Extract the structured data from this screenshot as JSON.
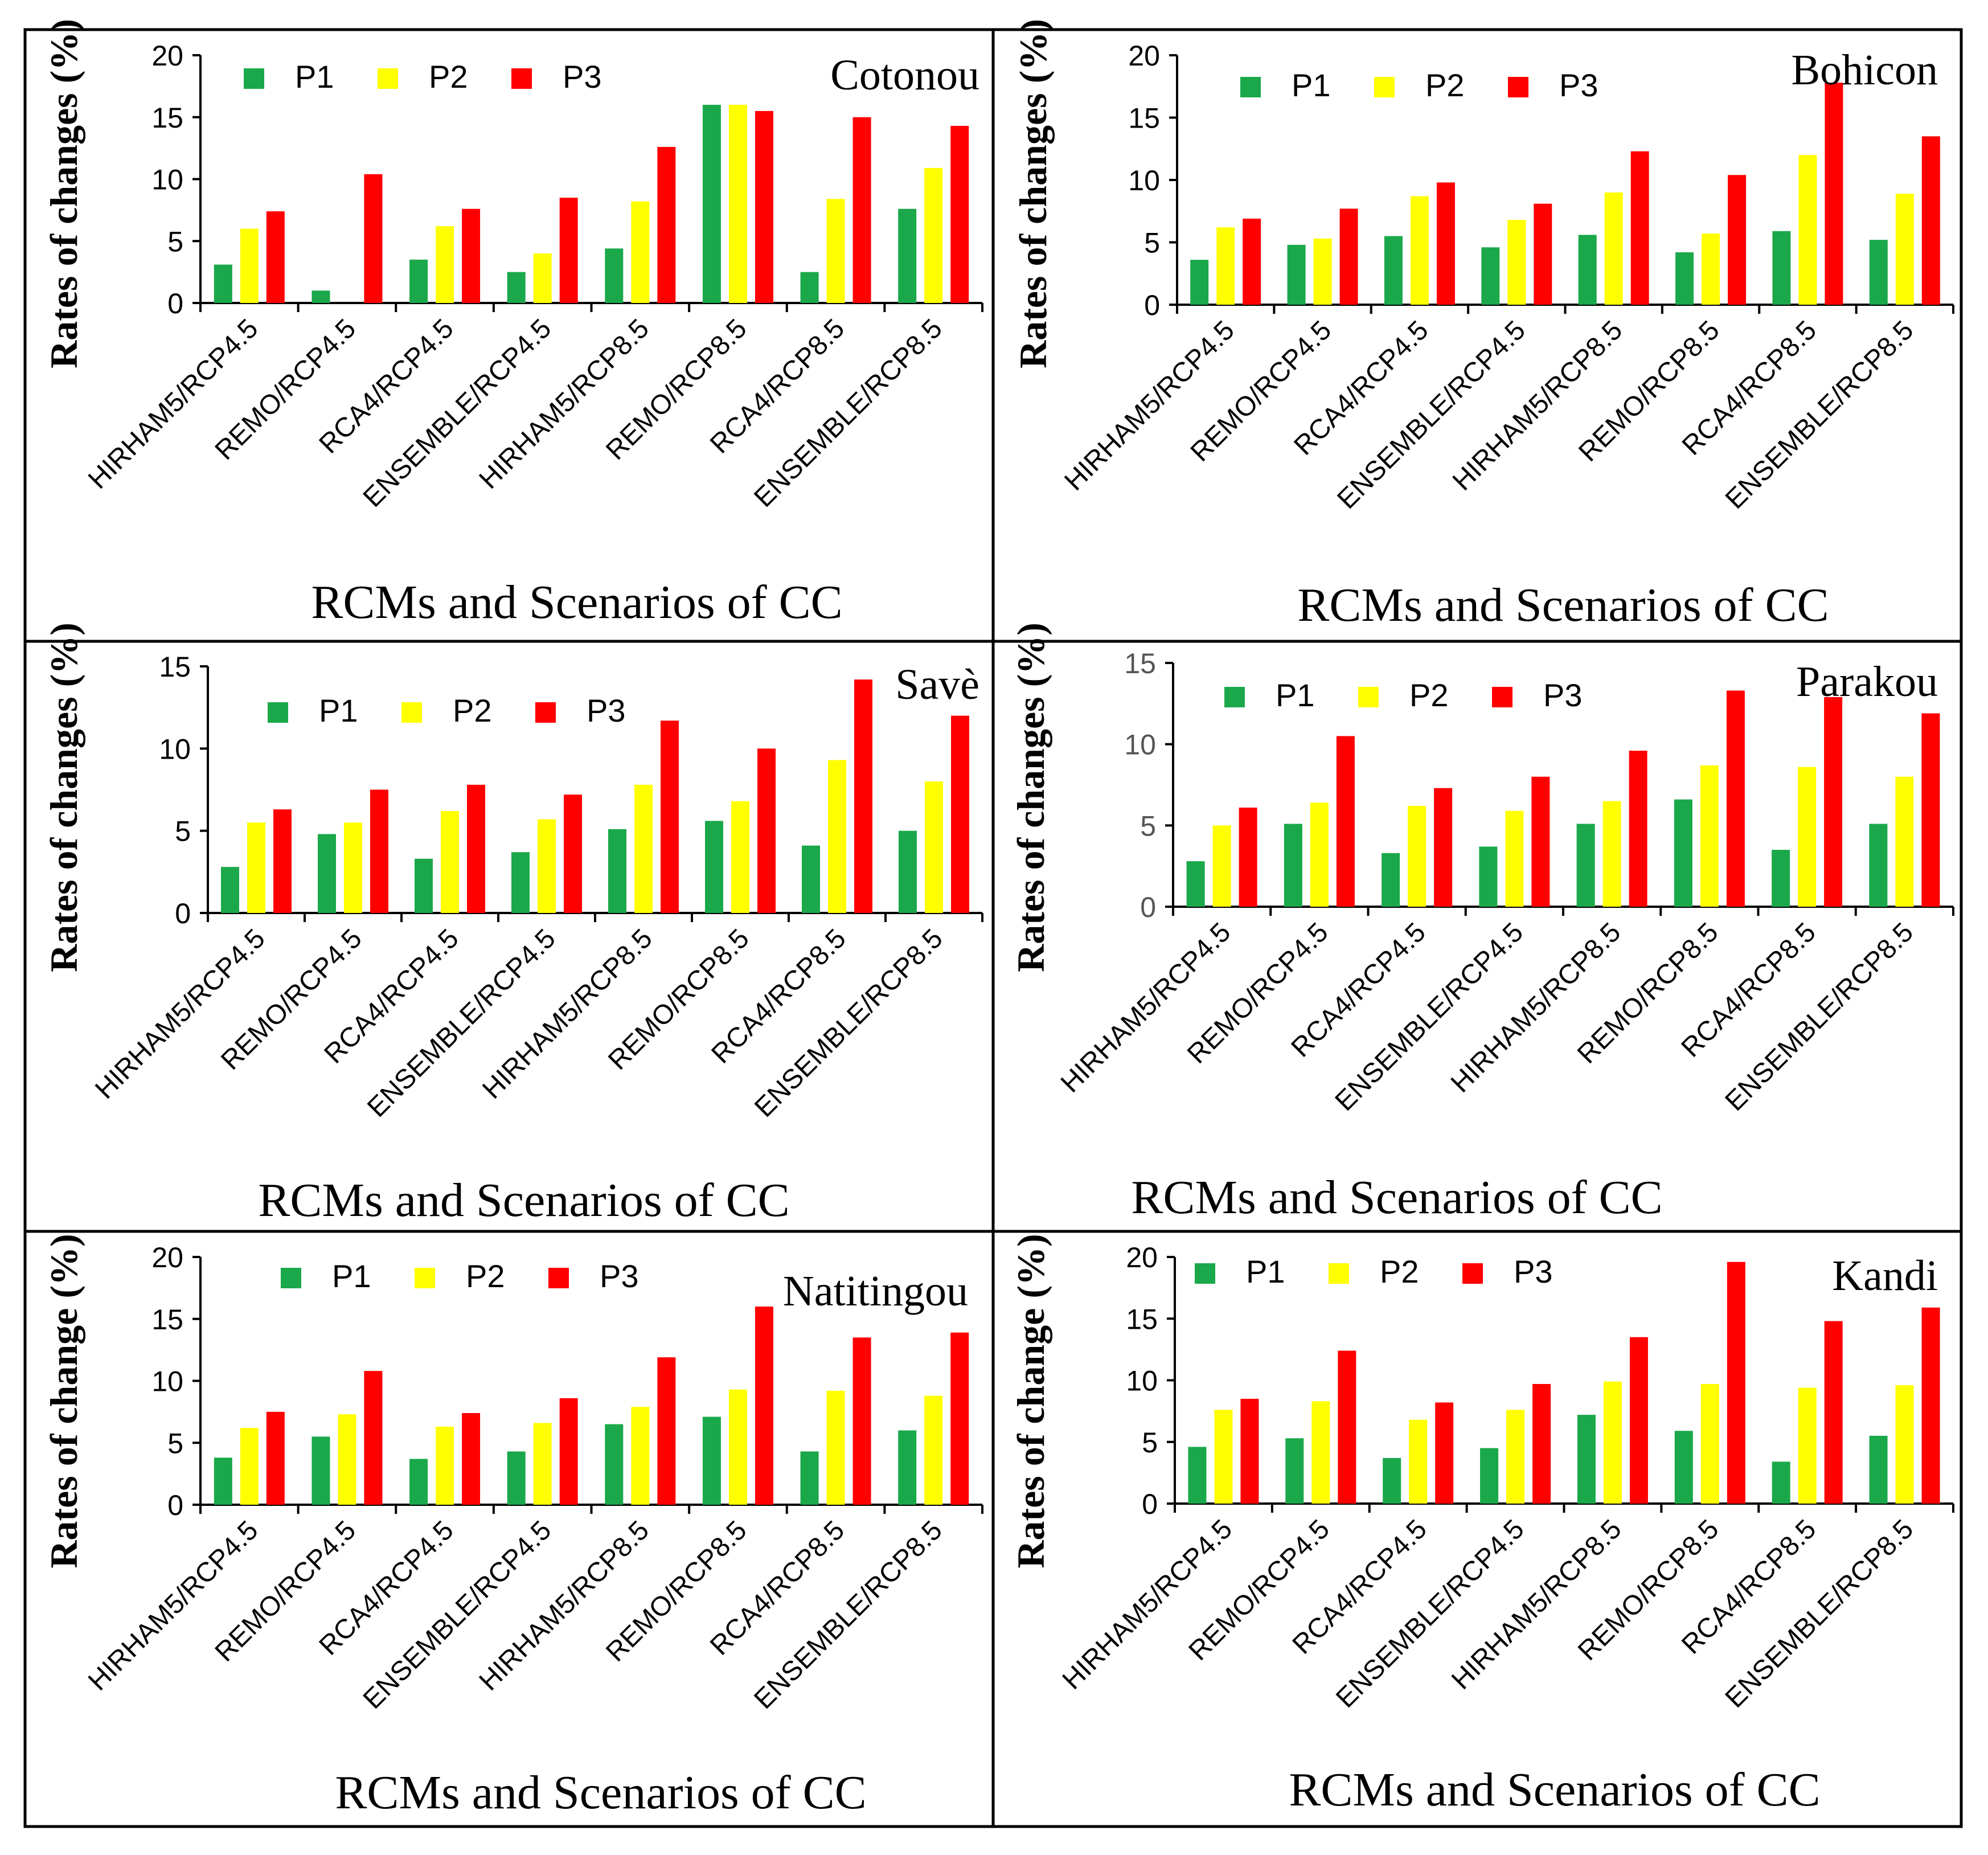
{
  "colors": {
    "P1": "#1aa84a",
    "P2": "#ffff00",
    "P3": "#ff0000",
    "axis": "#000000",
    "tick_text": "#000000",
    "tick_text_muted": "#555555",
    "border": "#000000"
  },
  "chart_data": [
    {
      "type": "bar",
      "title": "Cotonou",
      "xlabel": "RCMs and Scenarios of CC",
      "ylabel": "Rates of changes (%)",
      "ylim": [
        0,
        20
      ],
      "yticks": [
        "0",
        "5",
        "10",
        "15",
        "20"
      ],
      "legend": "top-left",
      "categories": [
        "HIRHAM5/RCP4.5",
        "REMO/RCP4.5",
        "RCA4/RCP4.5",
        "ENSEMBLE/RCP4.5",
        "HIRHAM5/RCP8.5",
        "REMO/RCP8.5",
        "RCA4/RCP8.5",
        "ENSEMBLE/RCP8.5"
      ],
      "series": [
        {
          "name": "P1",
          "values": [
            3.1,
            1.0,
            3.5,
            2.5,
            4.4,
            16.0,
            2.5,
            7.6
          ]
        },
        {
          "name": "P2",
          "values": [
            6.0,
            0.0,
            6.2,
            4.0,
            8.2,
            16.0,
            8.4,
            10.9
          ]
        },
        {
          "name": "P3",
          "values": [
            7.4,
            10.4,
            7.6,
            8.5,
            12.6,
            15.5,
            15.0,
            14.3
          ]
        }
      ]
    },
    {
      "type": "bar",
      "title": "Bohicon",
      "xlabel": "RCMs and Scenarios of CC",
      "ylabel": "Rates of changes (%)",
      "ylim": [
        0,
        20
      ],
      "yticks": [
        "0",
        "5",
        "10",
        "15",
        "20"
      ],
      "legend": "top-left",
      "categories": [
        "HIRHAM5/RCP4.5",
        "REMO/RCP4.5",
        "RCA4/RCP4.5",
        "ENSEMBLE/RCP4.5",
        "HIRHAM5/RCP8.5",
        "REMO/RCP8.5",
        "RCA4/RCP8.5",
        "ENSEMBLE/RCP8.5"
      ],
      "series": [
        {
          "name": "P1",
          "values": [
            3.6,
            4.8,
            5.5,
            4.6,
            5.6,
            4.2,
            5.9,
            5.2
          ]
        },
        {
          "name": "P2",
          "values": [
            6.2,
            5.3,
            8.7,
            6.8,
            9.0,
            5.7,
            12.0,
            8.9
          ]
        },
        {
          "name": "P3",
          "values": [
            6.9,
            7.7,
            9.8,
            8.1,
            12.3,
            10.4,
            17.8,
            13.5
          ]
        }
      ]
    },
    {
      "type": "bar",
      "title": "Savè",
      "xlabel": "RCMs and Scenarios of CC",
      "ylabel": "Rates of changes (%)",
      "ylim": [
        0,
        15
      ],
      "yticks": [
        "0",
        "5",
        "10",
        "15"
      ],
      "legend": "top-left",
      "categories": [
        "HIRHAM5/RCP4.5",
        "REMO/RCP4.5",
        "RCA4/RCP4.5",
        "ENSEMBLE/RCP4.5",
        "HIRHAM5/RCP8.5",
        "REMO/RCP8.5",
        "RCA4/RCP8.5",
        "ENSEMBLE/RCP8.5"
      ],
      "series": [
        {
          "name": "P1",
          "values": [
            2.8,
            4.8,
            3.3,
            3.7,
            5.1,
            5.6,
            4.1,
            5.0
          ]
        },
        {
          "name": "P2",
          "values": [
            5.5,
            5.5,
            6.2,
            5.7,
            7.8,
            6.8,
            9.3,
            8.0
          ]
        },
        {
          "name": "P3",
          "values": [
            6.3,
            7.5,
            7.8,
            7.2,
            11.7,
            10.0,
            14.2,
            12.0
          ]
        }
      ]
    },
    {
      "type": "bar",
      "title": "Parakou",
      "xlabel": "RCMs and Scenarios of CC",
      "ylabel": "Rates of changes (%)",
      "ylim": [
        0,
        15
      ],
      "yticks": [
        "0",
        "5",
        "10",
        "15"
      ],
      "legend": "top-left",
      "categories": [
        "HIRHAM5/RCP4.5",
        "REMO/RCP4.5",
        "RCA4/RCP4.5",
        "ENSEMBLE/RCP4.5",
        "HIRHAM5/RCP8.5",
        "REMO/RCP8.5",
        "RCA4/RCP8.5",
        "ENSEMBLE/RCP8.5"
      ],
      "series": [
        {
          "name": "P1",
          "values": [
            2.8,
            5.1,
            3.3,
            3.7,
            5.1,
            6.6,
            3.5,
            5.1
          ]
        },
        {
          "name": "P2",
          "values": [
            5.0,
            6.4,
            6.2,
            5.9,
            6.5,
            8.7,
            8.6,
            8.0
          ]
        },
        {
          "name": "P3",
          "values": [
            6.1,
            10.5,
            7.3,
            8.0,
            9.6,
            13.3,
            12.9,
            11.9
          ]
        }
      ]
    },
    {
      "type": "bar",
      "title": "Natitingou",
      "xlabel": "RCMs and Scenarios of CC",
      "ylabel": "Rates of change (%)",
      "ylim": [
        0,
        20
      ],
      "yticks": [
        "0",
        "5",
        "10",
        "15",
        "20"
      ],
      "legend": "top-left",
      "categories": [
        "HIRHAM5/RCP4.5",
        "REMO/RCP4.5",
        "RCA4/RCP4.5",
        "ENSEMBLE/RCP4.5",
        "HIRHAM5/RCP8.5",
        "REMO/RCP8.5",
        "RCA4/RCP8.5",
        "ENSEMBLE/RCP8.5"
      ],
      "series": [
        {
          "name": "P1",
          "values": [
            3.8,
            5.5,
            3.7,
            4.3,
            6.5,
            7.1,
            4.3,
            6.0
          ]
        },
        {
          "name": "P2",
          "values": [
            6.2,
            7.3,
            6.3,
            6.6,
            7.9,
            9.3,
            9.2,
            8.8
          ]
        },
        {
          "name": "P3",
          "values": [
            7.5,
            10.8,
            7.4,
            8.6,
            11.9,
            16.0,
            13.5,
            13.9
          ]
        }
      ]
    },
    {
      "type": "bar",
      "title": "Kandi",
      "xlabel": "RCMs and Scenarios of CC",
      "ylabel": "Rates of change (%)",
      "ylim": [
        0,
        20
      ],
      "yticks": [
        "0",
        "5",
        "10",
        "15",
        "20"
      ],
      "legend": "top-left",
      "categories": [
        "HIRHAM5/RCP4.5",
        "REMO/RCP4.5",
        "RCA4/RCP4.5",
        "ENSEMBLE/RCP4.5",
        "HIRHAM5/RCP8.5",
        "REMO/RCP8.5",
        "RCA4/RCP8.5",
        "ENSEMBLE/RCP8.5"
      ],
      "series": [
        {
          "name": "P1",
          "values": [
            4.6,
            5.3,
            3.7,
            4.5,
            7.2,
            5.9,
            3.4,
            5.5
          ]
        },
        {
          "name": "P2",
          "values": [
            7.6,
            8.3,
            6.8,
            7.6,
            9.9,
            9.7,
            9.4,
            9.6
          ]
        },
        {
          "name": "P3",
          "values": [
            8.5,
            12.4,
            8.2,
            9.7,
            13.5,
            19.6,
            14.8,
            15.9
          ]
        }
      ]
    }
  ]
}
